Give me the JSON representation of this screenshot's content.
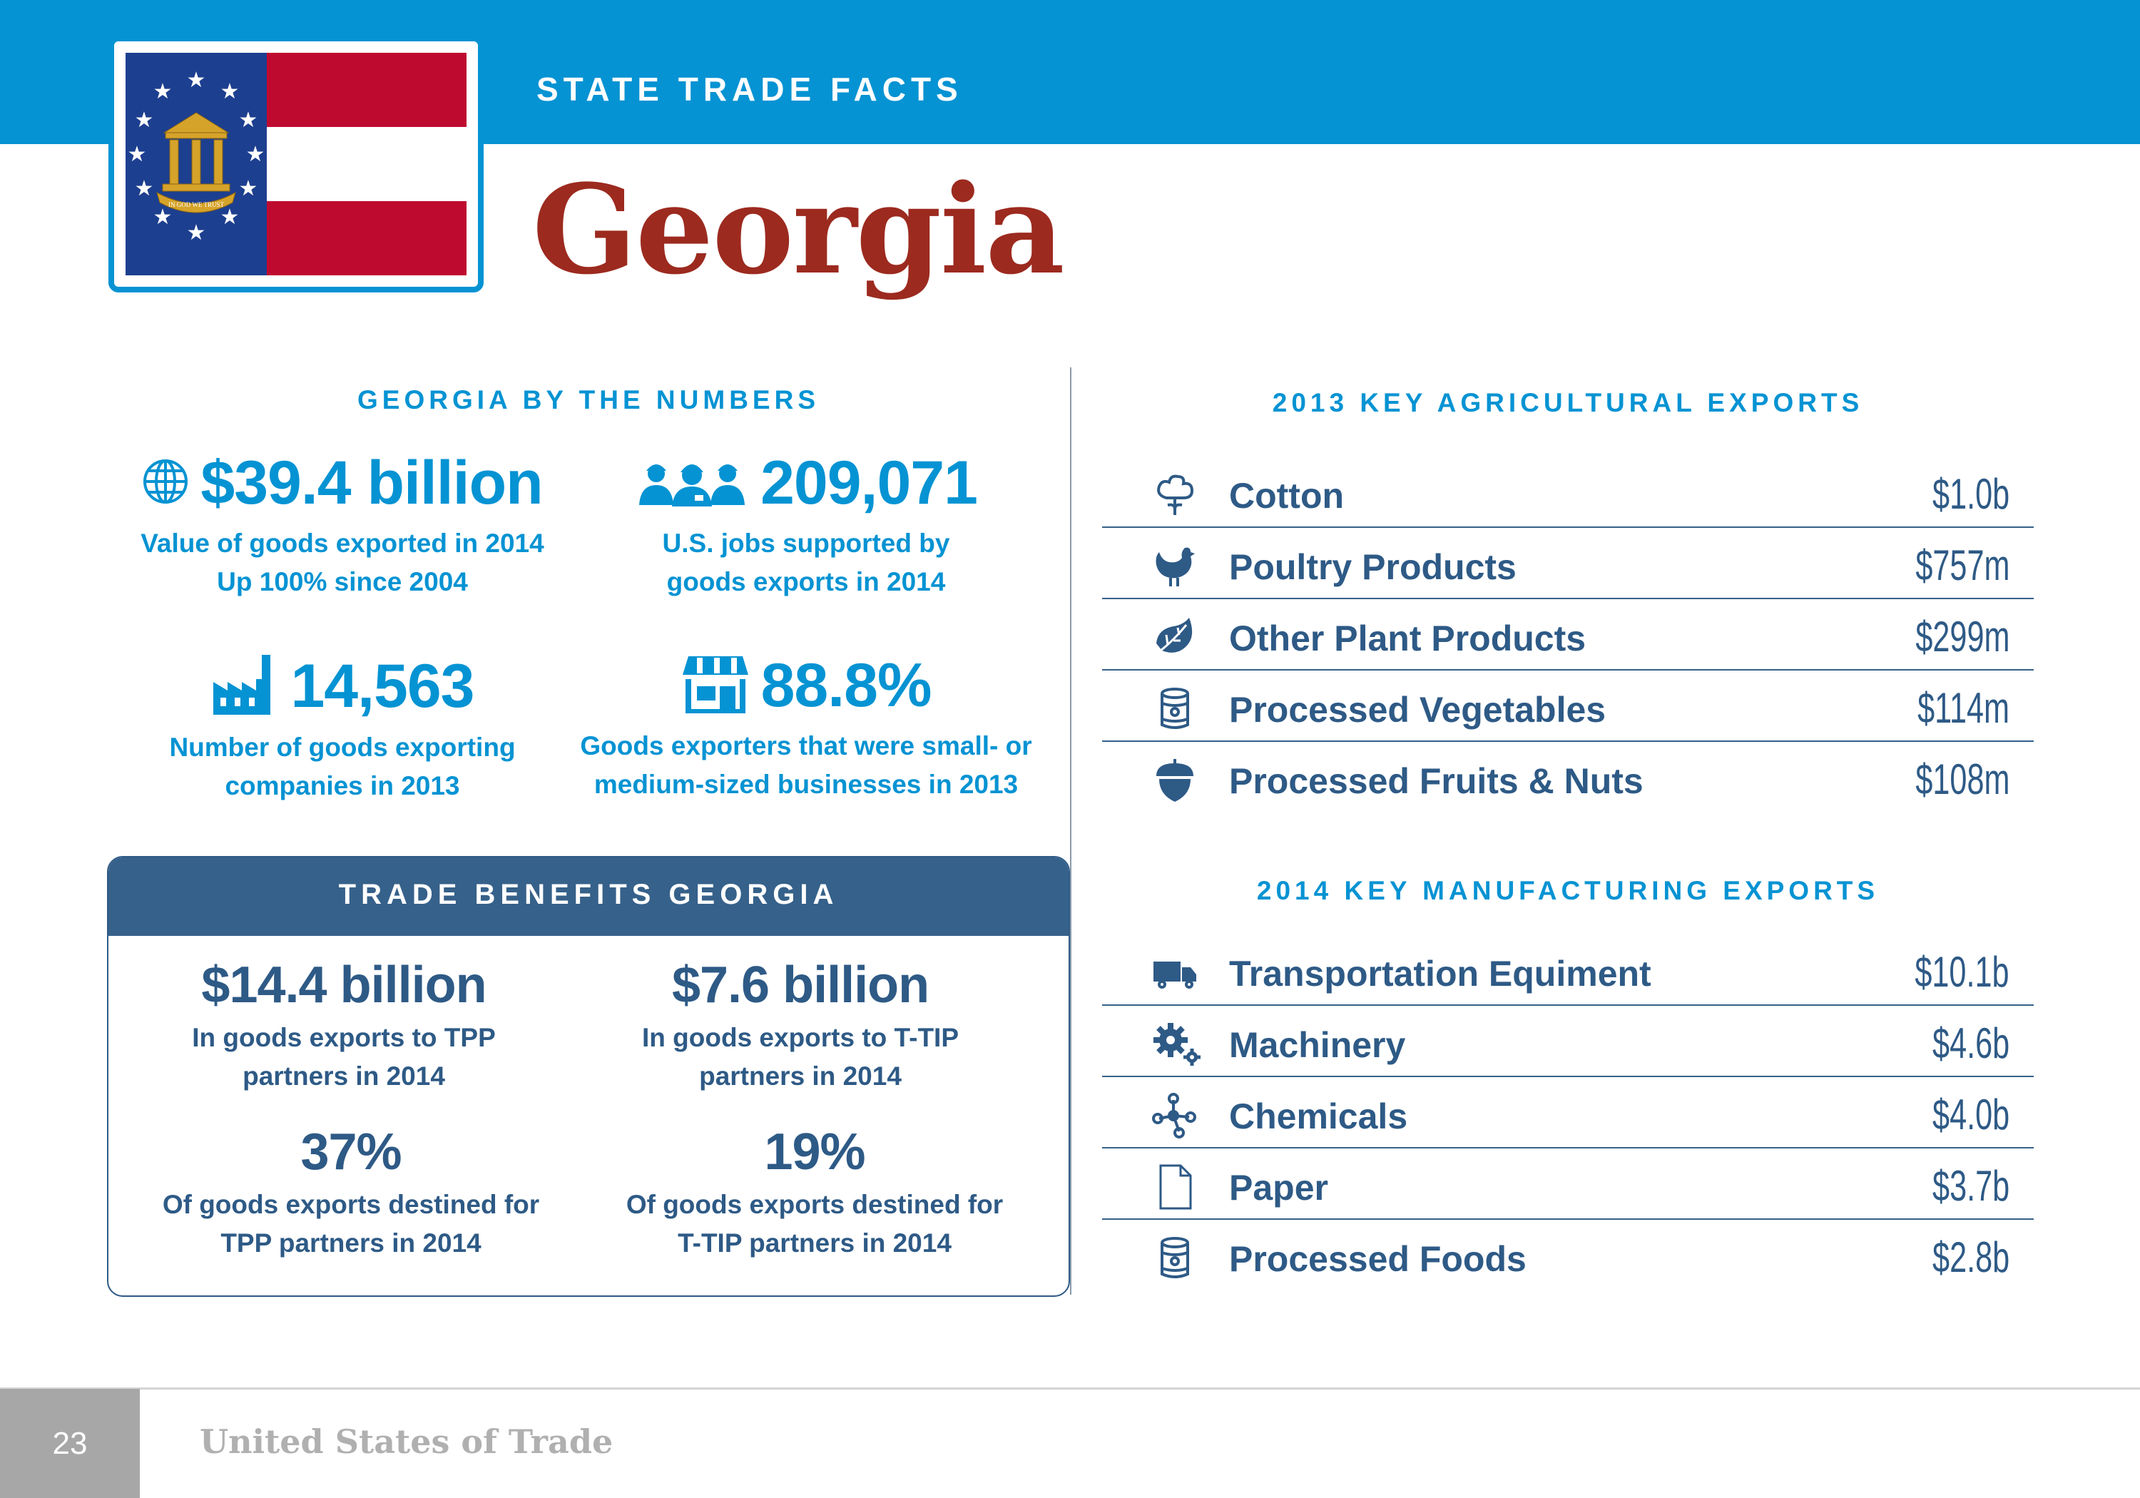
{
  "header": {
    "kicker": "STATE TRADE FACTS",
    "state": "Georgia",
    "flag_motto": "IN GOD WE TRUST",
    "colors": {
      "bar": "#0593d3",
      "title": "#9c2a1f",
      "flag_red": "#bf0a30",
      "flag_blue": "#1d3f8f"
    }
  },
  "numbers": {
    "heading": "GEORGIA BY THE NUMBERS",
    "stats": [
      {
        "icon": "globe-icon",
        "value": "$39.4 billion",
        "line1": "Value of goods exported in 2014",
        "line2": "Up 100% since 2004"
      },
      {
        "icon": "workers-icon",
        "value": "209,071",
        "line1": "U.S. jobs supported by",
        "line2": "goods exports in 2014"
      },
      {
        "icon": "factory-icon",
        "value": "14,563",
        "line1": "Number of goods exporting",
        "line2": "companies in 2013"
      },
      {
        "icon": "storefront-icon",
        "value": "88.8%",
        "line1": "Goods exporters that were small- or",
        "line2": "medium-sized businesses in 2013"
      }
    ]
  },
  "trade_benefits": {
    "heading": "TRADE BENEFITS GEORGIA",
    "stats": [
      {
        "value": "$14.4 billion",
        "line1": "In goods exports to TPP",
        "line2": "partners in 2014"
      },
      {
        "value": "$7.6 billion",
        "line1": "In goods exports to T-TIP",
        "line2": "partners in 2014"
      },
      {
        "value": "37%",
        "line1": "Of goods exports destined for",
        "line2": "TPP partners in 2014"
      },
      {
        "value": "19%",
        "line1": "Of goods exports destined for",
        "line2": "T-TIP partners in 2014"
      }
    ]
  },
  "agricultural": {
    "heading": "2013 KEY AGRICULTURAL EXPORTS",
    "items": [
      {
        "icon": "cotton-icon",
        "name": "Cotton",
        "value": "$1.0b"
      },
      {
        "icon": "chicken-icon",
        "name": "Poultry Products",
        "value": "$757m"
      },
      {
        "icon": "leaf-icon",
        "name": "Other Plant Products",
        "value": "$299m"
      },
      {
        "icon": "can-icon",
        "name": "Processed Vegetables",
        "value": "$114m"
      },
      {
        "icon": "acorn-icon",
        "name": "Processed Fruits & Nuts",
        "value": "$108m"
      }
    ]
  },
  "manufacturing": {
    "heading": "2014 KEY MANUFACTURING EXPORTS",
    "items": [
      {
        "icon": "truck-icon",
        "name": "Transportation Equiment",
        "value": "$10.1b"
      },
      {
        "icon": "gears-icon",
        "name": "Machinery",
        "value": "$4.6b"
      },
      {
        "icon": "molecule-icon",
        "name": "Chemicals",
        "value": "$4.0b"
      },
      {
        "icon": "paper-icon",
        "name": "Paper",
        "value": "$3.7b"
      },
      {
        "icon": "can-icon",
        "name": "Processed Foods",
        "value": "$2.8b"
      }
    ]
  },
  "footer": {
    "page": "23",
    "publication": "United States of Trade"
  }
}
